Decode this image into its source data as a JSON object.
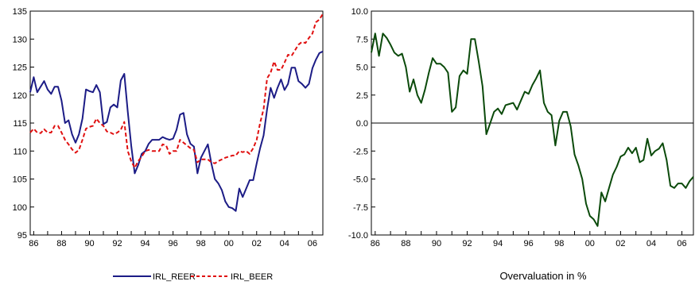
{
  "colors": {
    "reer": "#1c1c86",
    "beer": "#e01010",
    "overvaluation": "#0b4a0b",
    "axis": "#000000",
    "zero_line": "#000000"
  },
  "chart_data": [
    {
      "type": "line",
      "title": "",
      "xlabel": "",
      "ylabel": "",
      "xlim": [
        1985.75,
        2006.75
      ],
      "ylim": [
        95,
        135
      ],
      "grid": false,
      "legend": "bottom",
      "x_tick_labels": [
        "86",
        "88",
        "90",
        "92",
        "94",
        "96",
        "98",
        "00",
        "02",
        "04",
        "06"
      ],
      "y_tick_labels": [
        "95",
        "100",
        "105",
        "110",
        "115",
        "120",
        "125",
        "130",
        "135"
      ],
      "series": [
        {
          "name": "IRL_REER",
          "style": "solid",
          "x": [
            1985.75,
            1986,
            1986.25,
            1986.5,
            1986.75,
            1987,
            1987.25,
            1987.5,
            1987.75,
            1988,
            1988.25,
            1988.5,
            1988.75,
            1989,
            1989.25,
            1989.5,
            1989.75,
            1990,
            1990.25,
            1990.5,
            1990.75,
            1991,
            1991.25,
            1991.5,
            1991.75,
            1992,
            1992.25,
            1992.5,
            1992.75,
            1993,
            1993.25,
            1993.5,
            1993.75,
            1994,
            1994.25,
            1994.5,
            1994.75,
            1995,
            1995.25,
            1995.5,
            1995.75,
            1996,
            1996.25,
            1996.5,
            1996.75,
            1997,
            1997.25,
            1997.5,
            1997.75,
            1998,
            1998.25,
            1998.5,
            1998.75,
            1999,
            1999.25,
            1999.5,
            1999.75,
            2000,
            2000.25,
            2000.5,
            2000.75,
            2001,
            2001.25,
            2001.5,
            2001.75,
            2002,
            2002.25,
            2002.5,
            2002.75,
            2003,
            2003.25,
            2003.5,
            2003.75,
            2004,
            2004.25,
            2004.5,
            2004.75,
            2005,
            2005.25,
            2005.5,
            2005.75,
            2006,
            2006.25,
            2006.5,
            2006.75
          ],
          "values": [
            120.5,
            123.2,
            120.5,
            121.5,
            122.5,
            121.0,
            120.2,
            121.5,
            121.5,
            119.0,
            115.0,
            115.5,
            113.0,
            111.5,
            113.0,
            115.8,
            121.0,
            120.7,
            120.5,
            121.8,
            120.5,
            114.8,
            115.2,
            117.8,
            118.3,
            117.8,
            122.6,
            123.8,
            117.0,
            111.0,
            106.0,
            107.5,
            109.5,
            110.0,
            111.3,
            112.0,
            112.0,
            112.0,
            112.5,
            112.2,
            112.0,
            112.2,
            113.8,
            116.5,
            116.8,
            113.0,
            111.3,
            110.8,
            106.0,
            108.8,
            110.0,
            111.2,
            107.8,
            105.0,
            104.2,
            103.0,
            101.0,
            100.0,
            99.8,
            99.3,
            103.3,
            101.8,
            103.3,
            104.8,
            104.8,
            107.8,
            110.5,
            112.8,
            117.5,
            121.3,
            119.5,
            121.3,
            122.8,
            120.9,
            122.0,
            124.9,
            124.9,
            122.5,
            122.0,
            121.3,
            122.0,
            124.8,
            126.3,
            127.5,
            127.8
          ]
        },
        {
          "name": "IRL_BEER",
          "style": "dashed",
          "x": [
            1985.75,
            1986,
            1986.25,
            1986.5,
            1986.75,
            1987,
            1987.25,
            1987.5,
            1987.75,
            1988,
            1988.25,
            1988.5,
            1988.75,
            1989,
            1989.25,
            1989.5,
            1989.75,
            1990,
            1990.25,
            1990.5,
            1990.75,
            1991,
            1991.25,
            1991.5,
            1991.75,
            1992,
            1992.25,
            1992.5,
            1992.75,
            1993,
            1993.25,
            1993.5,
            1993.75,
            1994,
            1994.25,
            1994.5,
            1994.75,
            1995,
            1995.25,
            1995.5,
            1995.75,
            1996,
            1996.25,
            1996.5,
            1996.75,
            1997,
            1997.25,
            1997.5,
            1997.75,
            1998,
            1998.25,
            1998.5,
            1998.75,
            1999,
            1999.25,
            1999.5,
            1999.75,
            2000,
            2000.25,
            2000.5,
            2000.75,
            2001,
            2001.25,
            2001.5,
            2001.75,
            2002,
            2002.25,
            2002.5,
            2002.75,
            2003,
            2003.25,
            2003.5,
            2003.75,
            2004,
            2004.25,
            2004.5,
            2004.75,
            2005,
            2005.25,
            2005.5,
            2005.75,
            2006,
            2006.25,
            2006.5,
            2006.75
          ],
          "values": [
            113.3,
            114.0,
            113.3,
            113.2,
            113.9,
            113.3,
            113.3,
            114.5,
            114.5,
            113.3,
            112.0,
            111.2,
            110.3,
            109.7,
            110.2,
            112.0,
            114.0,
            114.3,
            114.5,
            115.8,
            115.0,
            114.5,
            113.5,
            113.3,
            113.0,
            113.3,
            113.8,
            115.2,
            110.0,
            108.2,
            107.0,
            108.2,
            109.0,
            110.0,
            110.2,
            110.0,
            110.0,
            110.0,
            111.2,
            111.0,
            109.5,
            110.0,
            110.0,
            112.0,
            111.5,
            111.0,
            110.5,
            110.2,
            108.0,
            108.5,
            108.5,
            108.5,
            108.0,
            107.8,
            108.2,
            108.5,
            108.8,
            109.0,
            109.2,
            109.2,
            110.0,
            109.8,
            110.0,
            109.5,
            110.5,
            112.0,
            115.0,
            117.5,
            123.0,
            124.0,
            126.0,
            124.5,
            124.5,
            125.8,
            127.2,
            127.0,
            128.0,
            129.0,
            129.5,
            129.3,
            130.2,
            131.0,
            133.0,
            133.5,
            134.5
          ]
        }
      ]
    },
    {
      "type": "line",
      "title": "",
      "xlabel": "Overvaluation in %",
      "ylabel": "",
      "xlim": [
        1985.75,
        2006.75
      ],
      "ylim": [
        -10.0,
        10.0
      ],
      "grid": false,
      "reference_line": 0.0,
      "x_tick_labels": [
        "86",
        "88",
        "90",
        "92",
        "94",
        "96",
        "98",
        "00",
        "02",
        "04",
        "06"
      ],
      "y_tick_labels": [
        "-10.0",
        "-7.5",
        "-5.0",
        "-2.5",
        "0.0",
        "2.5",
        "5.0",
        "7.5",
        "10.0"
      ],
      "series": [
        {
          "x": [
            1985.75,
            1986,
            1986.25,
            1986.5,
            1986.75,
            1987,
            1987.25,
            1987.5,
            1987.75,
            1988,
            1988.25,
            1988.5,
            1988.75,
            1989,
            1989.25,
            1989.5,
            1989.75,
            1990,
            1990.25,
            1990.5,
            1990.75,
            1991,
            1991.25,
            1991.5,
            1991.75,
            1992,
            1992.25,
            1992.5,
            1992.75,
            1993,
            1993.25,
            1993.5,
            1993.75,
            1994,
            1994.25,
            1994.5,
            1994.75,
            1995,
            1995.25,
            1995.5,
            1995.75,
            1996,
            1996.25,
            1996.5,
            1996.75,
            1997,
            1997.25,
            1997.5,
            1997.75,
            1998,
            1998.25,
            1998.5,
            1998.75,
            1999,
            1999.25,
            1999.5,
            1999.75,
            2000,
            2000.25,
            2000.5,
            2000.75,
            2001,
            2001.25,
            2001.5,
            2001.75,
            2002,
            2002.25,
            2002.5,
            2002.75,
            2003,
            2003.25,
            2003.5,
            2003.75,
            2004,
            2004.25,
            2004.5,
            2004.75,
            2005,
            2005.25,
            2005.5,
            2005.75,
            2006,
            2006.25,
            2006.5,
            2006.75
          ],
          "values": [
            6.3,
            8.0,
            6.0,
            8.0,
            7.6,
            7.0,
            6.3,
            6.0,
            6.2,
            5.0,
            2.8,
            3.9,
            2.5,
            1.8,
            3.0,
            4.5,
            5.8,
            5.3,
            5.3,
            5.0,
            4.5,
            1.0,
            1.4,
            4.2,
            4.7,
            4.4,
            7.5,
            7.5,
            5.5,
            3.3,
            -1.0,
            0.0,
            1.0,
            1.3,
            0.8,
            1.6,
            1.7,
            1.8,
            1.2,
            2.0,
            2.8,
            2.6,
            3.4,
            4.0,
            4.7,
            1.8,
            1.0,
            0.7,
            -2.0,
            0.2,
            1.0,
            1.0,
            -0.3,
            -2.8,
            -3.8,
            -5.0,
            -7.2,
            -8.3,
            -8.6,
            -9.2,
            -6.2,
            -7.0,
            -5.8,
            -4.6,
            -3.9,
            -3.0,
            -2.8,
            -2.2,
            -2.7,
            -2.2,
            -3.5,
            -3.3,
            -1.4,
            -2.9,
            -2.5,
            -2.3,
            -1.8,
            -3.3,
            -5.6,
            -5.8,
            -5.4,
            -5.4,
            -5.8,
            -5.2,
            -4.8
          ]
        }
      ]
    }
  ]
}
